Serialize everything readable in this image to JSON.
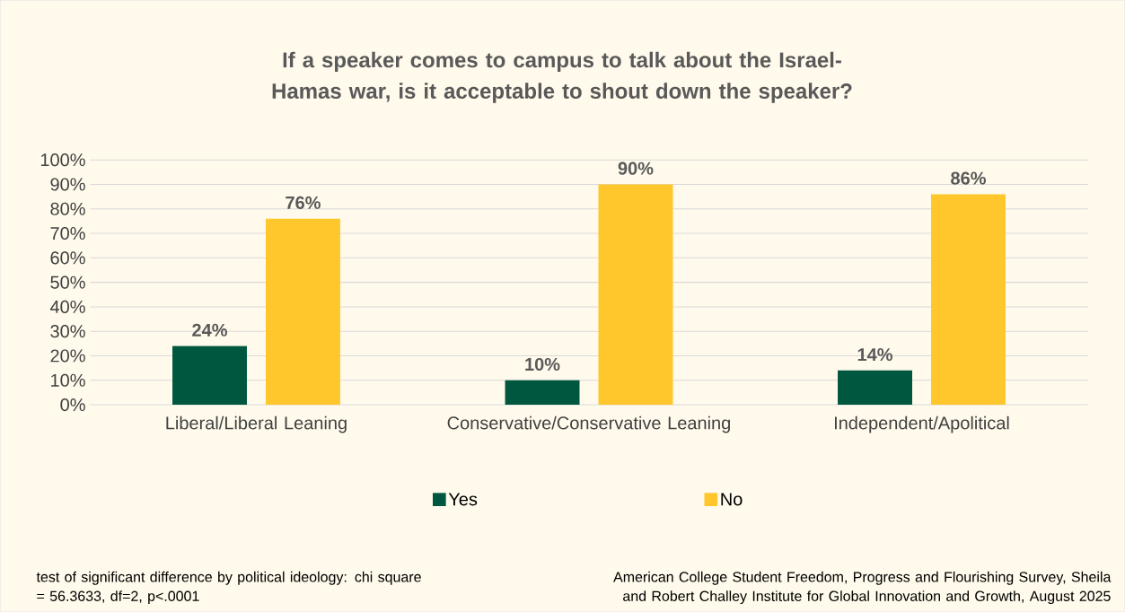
{
  "chart_data": {
    "type": "bar",
    "title": "If a speaker comes to campus to talk about the Israel-Hamas war, is it acceptable to shout down the speaker?",
    "categories": [
      "Liberal/Liberal Leaning",
      "Conservative/Conservative Leaning",
      "Independent/Apolitical"
    ],
    "series": [
      {
        "name": "Yes",
        "color": "#00573f",
        "values": [
          24,
          10,
          14
        ],
        "value_labels": [
          "24%",
          "10%",
          "14%"
        ]
      },
      {
        "name": "No",
        "color": "#ffc72c",
        "values": [
          76,
          90,
          86
        ],
        "value_labels": [
          "76%",
          "90%",
          "86%"
        ]
      }
    ],
    "ylim": [
      0,
      100
    ],
    "yticks": [
      {
        "value": 0,
        "label": "0%"
      },
      {
        "value": 10,
        "label": "10%"
      },
      {
        "value": 20,
        "label": "20%"
      },
      {
        "value": 30,
        "label": "30%"
      },
      {
        "value": 40,
        "label": "40%"
      },
      {
        "value": 50,
        "label": "50%"
      },
      {
        "value": 60,
        "label": "60%"
      },
      {
        "value": 70,
        "label": "70%"
      },
      {
        "value": 80,
        "label": "80%"
      },
      {
        "value": 90,
        "label": "90%"
      },
      {
        "value": 100,
        "label": "100%"
      }
    ],
    "grid": "y",
    "legend": "bottom",
    "annotations": [
      "test of significant difference by political ideology: chi square = 56.3633, df=2, p<.0001",
      "American College Student Freedom, Progress and Flourishing Survey, Sheila and Robert Challey Institute for Global Innovation and Growth, August 2025"
    ]
  }
}
